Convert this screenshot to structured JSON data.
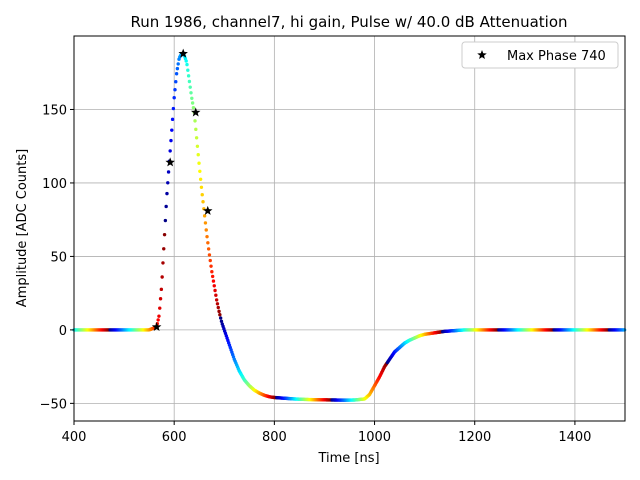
{
  "chart_data": {
    "type": "scatter",
    "title": "Run 1986, channel7, hi gain, Pulse w/ 40.0 dB Attenuation",
    "xlabel": "Time [ns]",
    "ylabel": "Amplitude [ADC Counts]",
    "xlim": [
      400,
      1500
    ],
    "ylim": [
      -62,
      200
    ],
    "xticks": [
      400,
      600,
      800,
      1000,
      1200,
      1400
    ],
    "yticks": [
      -50,
      0,
      50,
      100,
      150
    ],
    "grid": true,
    "legend_position": "top-right",
    "colormap": "jet",
    "waveform": {
      "x": [
        400,
        450,
        500,
        550,
        565,
        570,
        575,
        580,
        585,
        590,
        595,
        600,
        605,
        610,
        615,
        620,
        625,
        630,
        635,
        640,
        645,
        650,
        655,
        660,
        665,
        670,
        675,
        680,
        685,
        690,
        695,
        700,
        710,
        720,
        730,
        740,
        750,
        760,
        770,
        780,
        790,
        800,
        820,
        840,
        860,
        880,
        900,
        920,
        940,
        960,
        980,
        990,
        1000,
        1010,
        1020,
        1030,
        1040,
        1050,
        1060,
        1070,
        1080,
        1090,
        1100,
        1120,
        1140,
        1160,
        1180,
        1200,
        1250,
        1300,
        1350,
        1400,
        1450,
        1500
      ],
      "y": [
        0,
        0,
        0,
        0,
        2,
        10,
        30,
        60,
        90,
        113,
        135,
        158,
        175,
        185,
        188,
        187,
        182,
        170,
        158,
        148,
        130,
        112,
        95,
        80,
        65,
        52,
        40,
        30,
        20,
        12,
        5,
        0,
        -10,
        -20,
        -28,
        -34,
        -38,
        -41,
        -43,
        -44.5,
        -45.5,
        -46,
        -46.5,
        -47,
        -47.3,
        -47.5,
        -47.6,
        -47.7,
        -47.8,
        -47.7,
        -47,
        -44,
        -38,
        -32,
        -25,
        -20,
        -15,
        -12,
        -9,
        -7,
        -5.5,
        -4,
        -3,
        -2,
        -1,
        -0.5,
        0,
        0,
        0,
        0,
        0,
        0,
        0,
        0
      ]
    },
    "max_phase_series": {
      "name": "Max Phase 740",
      "marker": "star",
      "color": "#000000",
      "points": [
        {
          "x": 565,
          "y": 2
        },
        {
          "x": 592,
          "y": 114
        },
        {
          "x": 618,
          "y": 188
        },
        {
          "x": 643,
          "y": 148
        },
        {
          "x": 667,
          "y": 81
        }
      ]
    }
  }
}
